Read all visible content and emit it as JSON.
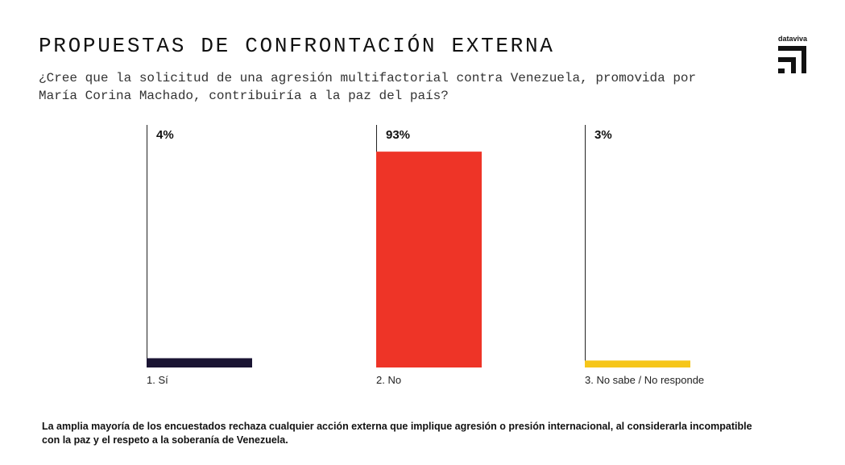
{
  "brand": "dataviva",
  "chart_data": {
    "type": "bar",
    "title": "PROPUESTAS DE CONFRONTACIÓN EXTERNA",
    "subtitle": "¿Cree que la solicitud de una agresión multifactorial contra Venezuela, promovida por María Corina Machado, contribuiría a la paz del país?",
    "categories": [
      "1. Sí",
      "2. No",
      "3. No sabe / No responde"
    ],
    "values": [
      4,
      93,
      3
    ],
    "value_labels": [
      "4%",
      "93%",
      "3%"
    ],
    "colors": [
      "#1a1433",
      "#ee3427",
      "#f6c619"
    ],
    "note": "La amplia mayoría de los encuestados rechaza cualquier acción externa que implique agresión o presión internacional, al considerarla incompatible con la paz y el respeto a la soberanía de Venezuela."
  }
}
